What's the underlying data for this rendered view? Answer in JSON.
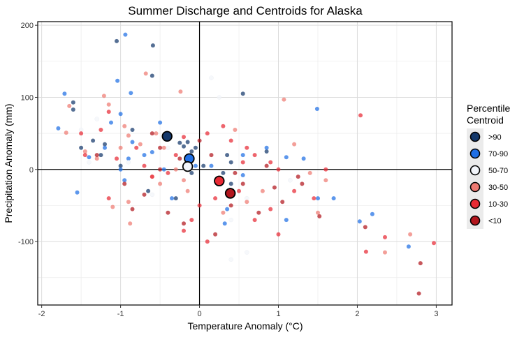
{
  "chart_data": {
    "type": "scatter",
    "title": "Summer Discharge and Centroids for Alaska",
    "xlabel": "Temperature Anomaly (°C)",
    "ylabel": "Precipitation Anomaly (mm)",
    "xlim": [
      -2.05,
      3.2
    ],
    "ylim": [
      -188,
      205
    ],
    "x_ticks": [
      "-2",
      "-1",
      "0",
      "1",
      "2",
      "3"
    ],
    "y_ticks": [
      "-100",
      "0",
      "100",
      "200"
    ],
    "x_tick_values": [
      -2,
      -1,
      0,
      1,
      2,
      3
    ],
    "y_tick_values": [
      -100,
      0,
      100,
      200
    ],
    "grid": true,
    "reference_lines": {
      "x": 0,
      "y": 0
    },
    "legend": {
      "title_lines": [
        "Percentile",
        "Centroid"
      ],
      "position": "right",
      "entries": [
        ">90",
        "70-90",
        "50-70",
        "30-50",
        "10-30",
        "<10"
      ]
    },
    "series": [
      {
        "name": ">90",
        "color": "#14386b",
        "points": [
          [
            -1.05,
            178
          ],
          [
            -0.59,
            172
          ],
          [
            -0.6,
            130
          ],
          [
            -1.6,
            93
          ],
          [
            -1.6,
            83
          ],
          [
            -0.85,
            55
          ],
          [
            -1.35,
            40
          ],
          [
            -1.5,
            30
          ],
          [
            -1.25,
            20
          ],
          [
            -1.2,
            35
          ],
          [
            -0.25,
            37
          ],
          [
            -0.15,
            38
          ],
          [
            -0.2,
            32
          ],
          [
            -0.1,
            25
          ],
          [
            -0.05,
            30
          ],
          [
            0.55,
            105
          ],
          [
            0.85,
            25
          ],
          [
            0.35,
            20
          ],
          [
            0.4,
            10
          ],
          [
            -1.0,
            5
          ],
          [
            0.3,
            -5
          ],
          [
            -0.1,
            -5
          ],
          [
            0.05,
            5
          ],
          [
            -0.65,
            -30
          ],
          [
            -0.3,
            -40
          ],
          [
            0.4,
            -20
          ]
        ],
        "centroid": [
          -0.41,
          46
        ]
      },
      {
        "name": "70-90",
        "color": "#1f6fe5",
        "points": [
          [
            -0.94,
            187
          ],
          [
            -1.04,
            123
          ],
          [
            -1.71,
            105
          ],
          [
            -0.87,
            106
          ],
          [
            -1.79,
            57
          ],
          [
            -1.0,
            77
          ],
          [
            -1.12,
            65
          ],
          [
            -1.2,
            30
          ],
          [
            -1.4,
            17
          ],
          [
            -0.5,
            65
          ],
          [
            -0.85,
            38
          ],
          [
            -0.7,
            20
          ],
          [
            -0.6,
            24
          ],
          [
            -0.9,
            15
          ],
          [
            -1.0,
            0
          ],
          [
            -0.95,
            -15
          ],
          [
            -0.35,
            -40
          ],
          [
            -1.55,
            -32
          ],
          [
            0.15,
            5
          ],
          [
            0.55,
            20
          ],
          [
            0.55,
            -8
          ],
          [
            0.35,
            -55
          ],
          [
            0.32,
            -75
          ],
          [
            0.85,
            30
          ],
          [
            1.1,
            17
          ],
          [
            1.32,
            15
          ],
          [
            1.49,
            84
          ],
          [
            1.1,
            -70
          ],
          [
            1.5,
            -40
          ],
          [
            1.7,
            -40
          ],
          [
            2.03,
            -72
          ],
          [
            2.19,
            -62
          ],
          [
            2.65,
            -107
          ],
          [
            -0.45,
            0
          ],
          [
            -0.05,
            5
          ]
        ],
        "centroid": [
          -0.13,
          15
        ]
      },
      {
        "name": "50-70",
        "color": "#f2f5fa",
        "points": [
          [
            0.15,
            127
          ],
          [
            -1.3,
            70
          ],
          [
            -1.5,
            55
          ],
          [
            -1.4,
            10
          ],
          [
            -0.9,
            10
          ],
          [
            -0.6,
            -35
          ],
          [
            0.6,
            -40
          ],
          [
            0.4,
            -70
          ],
          [
            0.6,
            -115
          ],
          [
            0.4,
            -125
          ],
          [
            -0.4,
            30
          ],
          [
            0.25,
            100
          ],
          [
            1.15,
            -15
          ]
        ],
        "centroid": [
          -0.15,
          4
        ]
      },
      {
        "name": "30-50",
        "color": "#ee7a72",
        "points": [
          [
            -0.68,
            133
          ],
          [
            -0.24,
            108
          ],
          [
            -1.21,
            102
          ],
          [
            -1.65,
            88
          ],
          [
            -1.69,
            51
          ],
          [
            -1.15,
            90
          ],
          [
            -0.95,
            60
          ],
          [
            -0.75,
            35
          ],
          [
            -0.55,
            50
          ],
          [
            -0.45,
            30
          ],
          [
            -1.45,
            25
          ],
          [
            -1.3,
            15
          ],
          [
            -1.0,
            30
          ],
          [
            -0.9,
            47
          ],
          [
            -0.6,
            -10
          ],
          [
            -0.3,
            0
          ],
          [
            -0.9,
            -45
          ],
          [
            -1.1,
            -52
          ],
          [
            -0.88,
            -75
          ],
          [
            -0.15,
            -30
          ],
          [
            0.3,
            -60
          ],
          [
            0.6,
            -45
          ],
          [
            0.8,
            -30
          ],
          [
            1.07,
            97
          ],
          [
            1.2,
            35
          ],
          [
            1.4,
            -5
          ],
          [
            1.5,
            -60
          ],
          [
            1.6,
            -15
          ],
          [
            2.35,
            -115
          ],
          [
            2.67,
            -90
          ],
          [
            -0.5,
            -20
          ],
          [
            0.45,
            55
          ],
          [
            -0.2,
            -15
          ]
        ],
        "centroid": [
          0.39,
          -33
        ]
      },
      {
        "name": "10-30",
        "color": "#e82a34",
        "points": [
          [
            -1.15,
            80
          ],
          [
            -1.25,
            55
          ],
          [
            -1.5,
            50
          ],
          [
            -1.45,
            20
          ],
          [
            -1.05,
            15
          ],
          [
            -0.8,
            30
          ],
          [
            -0.7,
            5
          ],
          [
            -0.6,
            -10
          ],
          [
            -0.4,
            -5
          ],
          [
            -0.2,
            45
          ],
          [
            0.3,
            60
          ],
          [
            0.1,
            50
          ],
          [
            0.4,
            40
          ],
          [
            0.6,
            30
          ],
          [
            0.7,
            20
          ],
          [
            0.9,
            10
          ],
          [
            1.0,
            0
          ],
          [
            0.5,
            -30
          ],
          [
            0.2,
            -40
          ],
          [
            0.0,
            -50
          ],
          [
            -0.1,
            -70
          ],
          [
            -0.2,
            -85
          ],
          [
            0.1,
            -100
          ],
          [
            0.7,
            -70
          ],
          [
            0.9,
            -55
          ],
          [
            1.2,
            -30
          ],
          [
            1.45,
            -40
          ],
          [
            1.6,
            0
          ],
          [
            2.04,
            75
          ],
          [
            2.11,
            -114
          ],
          [
            2.35,
            -94
          ],
          [
            2.97,
            -102
          ],
          [
            -1.15,
            -40
          ],
          [
            -0.3,
            20
          ],
          [
            0.55,
            10
          ],
          [
            1.0,
            -90
          ]
        ],
        "centroid": [
          0.25,
          -16
        ]
      },
      {
        "name": "<10",
        "color": "#b2161d",
        "points": [
          [
            -0.5,
            30
          ],
          [
            -0.6,
            50
          ],
          [
            -1.3,
            20
          ],
          [
            -0.95,
            -20
          ],
          [
            -0.7,
            -35
          ],
          [
            -0.4,
            -60
          ],
          [
            -0.2,
            -75
          ],
          [
            0.2,
            -90
          ],
          [
            0.4,
            -50
          ],
          [
            0.55,
            -20
          ],
          [
            0.85,
            5
          ],
          [
            0.95,
            -25
          ],
          [
            1.05,
            -45
          ],
          [
            1.25,
            -10
          ],
          [
            1.52,
            -65
          ],
          [
            2.1,
            -80
          ],
          [
            2.8,
            -130
          ],
          [
            2.78,
            -172
          ],
          [
            0.0,
            40
          ],
          [
            0.15,
            20
          ],
          [
            -0.5,
            0
          ],
          [
            -0.25,
            15
          ],
          [
            0.45,
            -5
          ],
          [
            1.3,
            -20
          ],
          [
            0.75,
            -60
          ],
          [
            -0.85,
            -55
          ]
        ],
        "centroid": [
          0.39,
          -33
        ]
      }
    ]
  }
}
